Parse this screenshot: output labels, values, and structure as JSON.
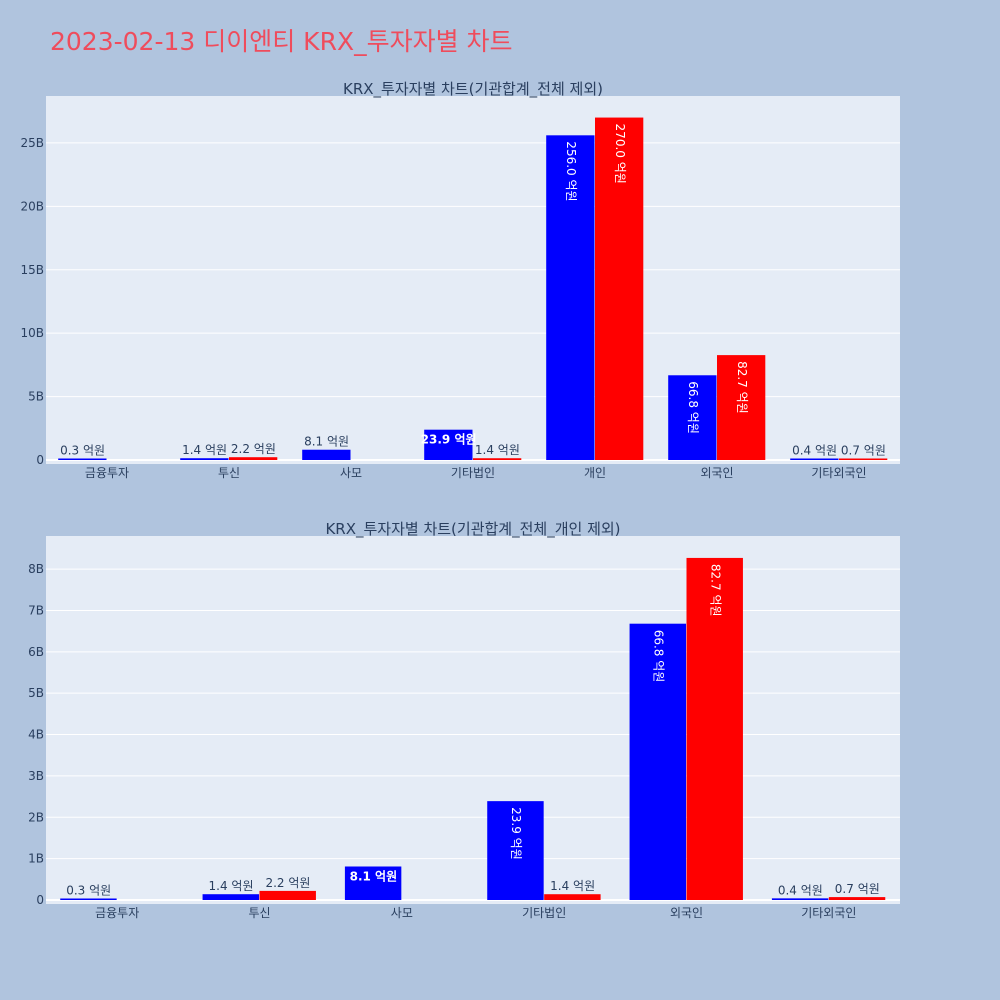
{
  "page": {
    "title": "2023-02-13 디이엔티 KRX_투자자별 차트"
  },
  "colors": {
    "buy": "#0000ff",
    "sell": "#ff0000",
    "plot_bg": "#e5ecf6",
    "page_bg": "#b0c4de",
    "title": "#ef4c5c"
  },
  "chart_data": [
    {
      "type": "bar",
      "title": "KRX_투자자별 차트(기관합계_전체 제외)",
      "categories": [
        "금융투자",
        "투신",
        "사모",
        "기타법인",
        "개인",
        "외국인",
        "기타외국인"
      ],
      "yticks": [
        "0",
        "5B",
        "10B",
        "15B",
        "20B",
        "25B"
      ],
      "ylim": [
        0,
        28700000000
      ],
      "series": [
        {
          "color": "#0000ff",
          "values": [
            30000000,
            140000000,
            810000000,
            2390000000,
            25600000000,
            6680000000,
            40000000
          ],
          "labels": [
            "0.3 억원",
            "1.4 억원",
            "8.1 억원",
            "23.9 억원",
            "256.0 억원",
            "66.8 억원",
            "0.4 억원"
          ]
        },
        {
          "color": "#ff0000",
          "values": [
            0,
            220000000,
            0,
            140000000,
            27000000000,
            8270000000,
            70000000
          ],
          "labels": [
            "",
            "2.2 억원",
            "",
            "1.4 억원",
            "270.0 억원",
            "82.7 억원",
            "0.7 억원"
          ]
        }
      ]
    },
    {
      "type": "bar",
      "title": "KRX_투자자별 차트(기관합계_전체_개인 제외)",
      "categories": [
        "금융투자",
        "투신",
        "사모",
        "기타법인",
        "외국인",
        "기타외국인"
      ],
      "yticks": [
        "0",
        "1B",
        "2B",
        "3B",
        "4B",
        "5B",
        "6B",
        "7B",
        "8B"
      ],
      "ylim": [
        0,
        8800000000
      ],
      "series": [
        {
          "color": "#0000ff",
          "values": [
            30000000,
            140000000,
            810000000,
            2390000000,
            6680000000,
            40000000
          ],
          "labels": [
            "0.3 억원",
            "1.4 억원",
            "8.1 억원",
            "23.9 억원",
            "66.8 억원",
            "0.4 억원"
          ]
        },
        {
          "color": "#ff0000",
          "values": [
            0,
            220000000,
            0,
            140000000,
            8270000000,
            70000000
          ],
          "labels": [
            "",
            "2.2 억원",
            "",
            "1.4 억원",
            "82.7 억원",
            "0.7 억원"
          ]
        }
      ]
    }
  ]
}
